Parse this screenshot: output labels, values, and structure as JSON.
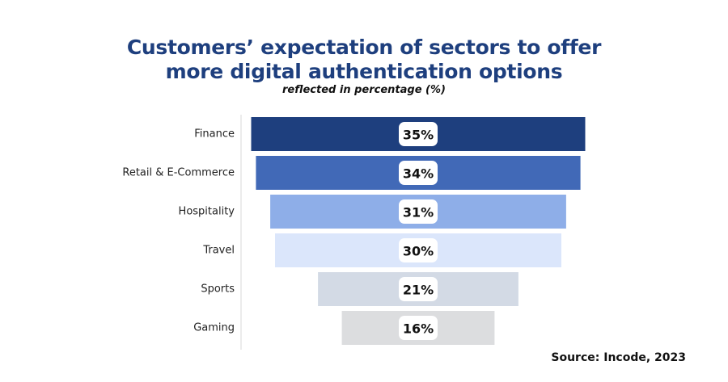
{
  "chart_data": {
    "type": "bar",
    "title_lines": [
      "Customers’ expectation of sectors to offer",
      "more digital authentication options"
    ],
    "subtitle": "reflected in percentage (%)",
    "categories": [
      "Finance",
      "Retail & E-Commerce",
      "Hospitality",
      "Travel",
      "Sports",
      "Gaming"
    ],
    "values": [
      35,
      34,
      31,
      30,
      21,
      16
    ],
    "value_labels": [
      "35%",
      "34%",
      "31%",
      "30%",
      "21%",
      "16%"
    ],
    "colors": [
      "#1e3f7e",
      "#4169b7",
      "#8eaee8",
      "#dbe6fb",
      "#d3dae5",
      "#dcdddf"
    ],
    "xlim": [
      0,
      35
    ],
    "orientation": "horizontal-centered",
    "grid": false
  },
  "source": "Source: Incode, 2023"
}
